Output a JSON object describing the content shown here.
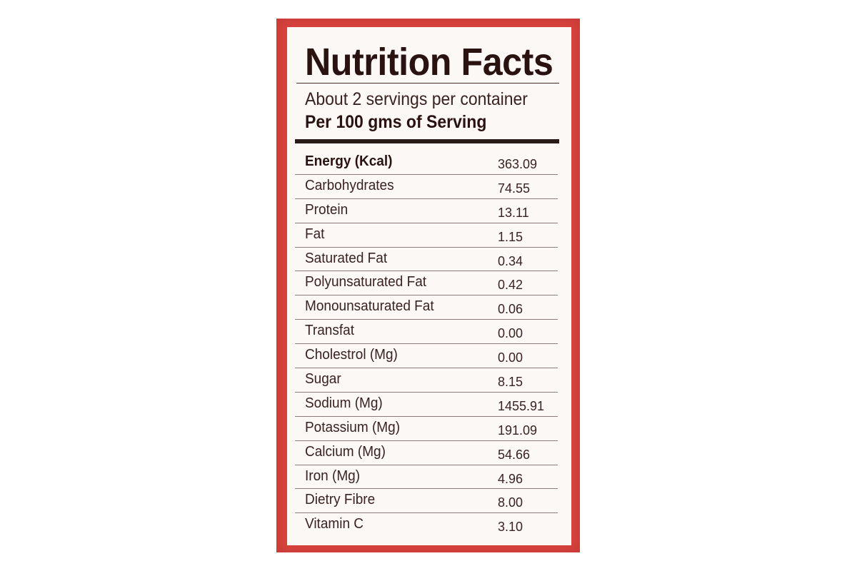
{
  "label": {
    "title": "Nutrition Facts",
    "servings": "About 2 servings per container",
    "basis": "Per 100 gms of Serving",
    "rows": [
      {
        "name": "Energy (Kcal)",
        "value": "363.09"
      },
      {
        "name": "Carbohydrates",
        "value": "74.55"
      },
      {
        "name": "Protein",
        "value": "13.11"
      },
      {
        "name": "Fat",
        "value": "1.15"
      },
      {
        "name": "Saturated Fat",
        "value": "0.34"
      },
      {
        "name": "Polyunsaturated Fat",
        "value": "0.42"
      },
      {
        "name": "Monounsaturated Fat",
        "value": "0.06"
      },
      {
        "name": "Transfat",
        "value": "0.00"
      },
      {
        "name": "Cholestrol (Mg)",
        "value": "0.00"
      },
      {
        "name": "Sugar",
        "value": "8.15"
      },
      {
        "name": "Sodium (Mg)",
        "value": "1455.91"
      },
      {
        "name": "Potassium (Mg)",
        "value": "191.09"
      },
      {
        "name": "Calcium (Mg)",
        "value": "54.66"
      },
      {
        "name": "Iron (Mg)",
        "value": "4.96"
      },
      {
        "name": "Dietry Fibre",
        "value": "8.00"
      },
      {
        "name": "Vitamin C",
        "value": "3.10"
      }
    ]
  },
  "colors": {
    "package_red": "#d9443f",
    "panel": "#fbf8f6",
    "text_dark": "#2a1210"
  }
}
